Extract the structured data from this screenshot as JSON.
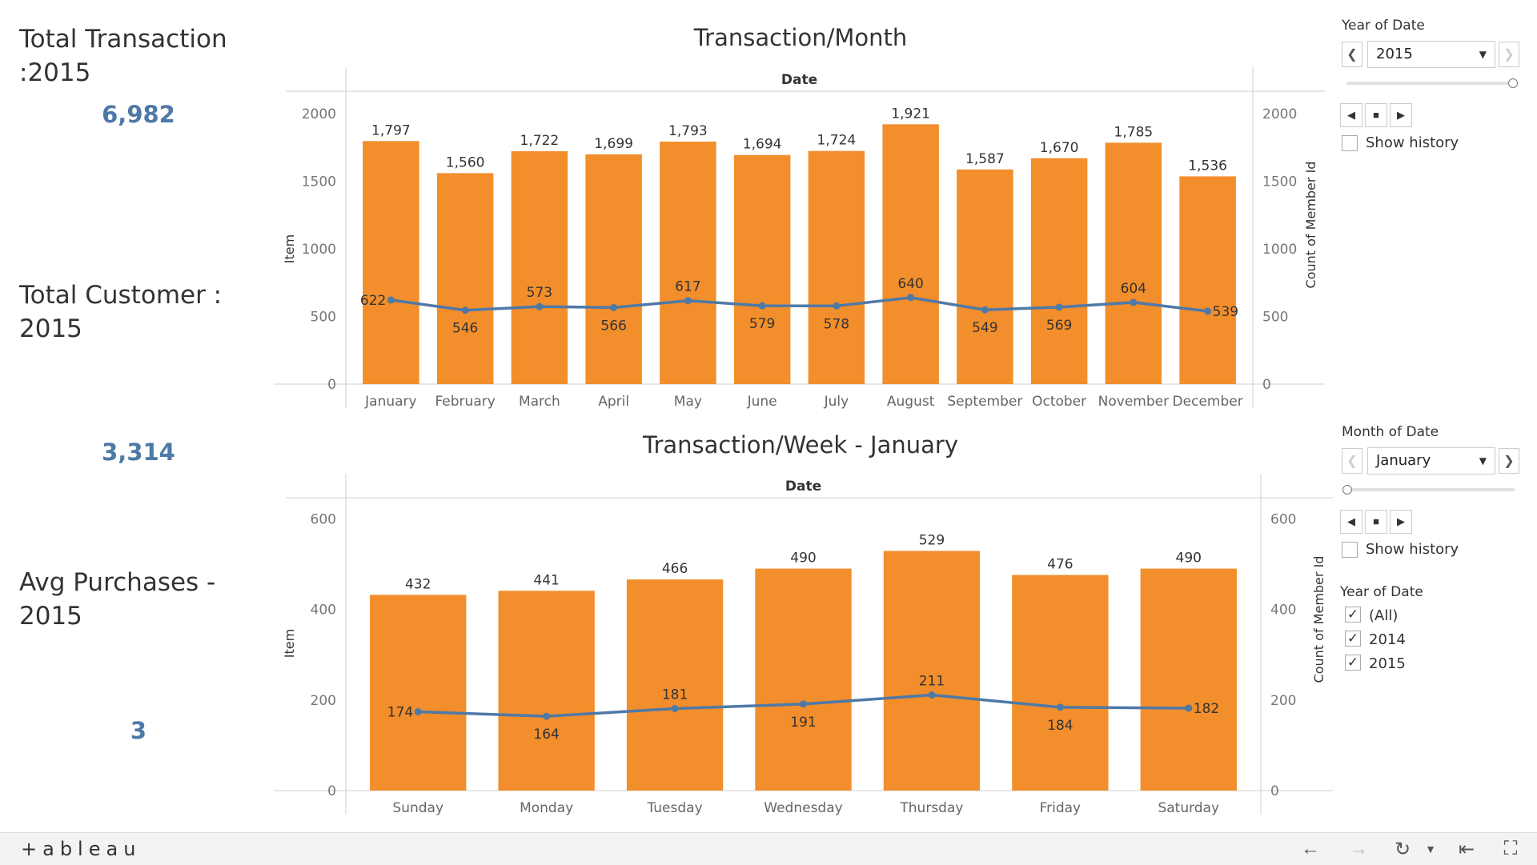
{
  "kpis": {
    "transaction_title": "Total Transaction\n:2015",
    "transaction_value": "6,982",
    "customer_title": "Total Customer :\n2015",
    "customer_value": "3,314",
    "avg_title": "Avg Purchases -\n2015",
    "avg_value": "3"
  },
  "filters": {
    "year_label": "Year of Date",
    "year_value": "2015",
    "month_label": "Month of Date",
    "month_value": "January",
    "show_history": "Show history",
    "year_list_label": "Year of Date",
    "year_options": [
      "(All)",
      "2014",
      "2015"
    ]
  },
  "colors": {
    "bar": "#f28e2b",
    "line": "#4e79a7",
    "kpi": "#4e79a7"
  },
  "footer": {
    "logo_text": "+ableau"
  },
  "chart_data": [
    {
      "type": "bar",
      "title": "Transaction/Month",
      "header": "Date",
      "ylabel": "Item",
      "y2label": "Count of Member Id",
      "ylim": [
        0,
        2000
      ],
      "yticks": [
        0,
        500,
        1000,
        1500,
        2000
      ],
      "categories": [
        "January",
        "February",
        "March",
        "April",
        "May",
        "June",
        "July",
        "August",
        "September",
        "October",
        "November",
        "December"
      ],
      "bar_values": [
        1797,
        1560,
        1722,
        1699,
        1793,
        1694,
        1724,
        1921,
        1587,
        1670,
        1785,
        1536
      ],
      "bar_labels": [
        "1,797",
        "1,560",
        "1,722",
        "1,699",
        "1,793",
        "1,694",
        "1,724",
        "1,921",
        "1,587",
        "1,670",
        "1,785",
        "1,536"
      ],
      "line_values": [
        622,
        546,
        573,
        566,
        617,
        579,
        578,
        640,
        549,
        569,
        604,
        539
      ],
      "line_labels": [
        "622",
        "546",
        "573",
        "566",
        "617",
        "579",
        "578",
        "640",
        "549",
        "569",
        "604",
        "539"
      ],
      "line_label_pos": [
        "left",
        "below",
        "above",
        "below",
        "above",
        "below",
        "below",
        "above",
        "below",
        "below",
        "above",
        "right"
      ]
    },
    {
      "type": "bar",
      "title": "Transaction/Week - January",
      "header": "Date",
      "ylabel": "Item",
      "y2label": "Count of Member Id",
      "ylim": [
        0,
        650
      ],
      "yticks": [
        0,
        200,
        400,
        600
      ],
      "categories": [
        "Sunday",
        "Monday",
        "Tuesday",
        "Wednesday",
        "Thursday",
        "Friday",
        "Saturday"
      ],
      "bar_values": [
        432,
        441,
        466,
        490,
        529,
        476,
        490
      ],
      "bar_labels": [
        "432",
        "441",
        "466",
        "490",
        "529",
        "476",
        "490"
      ],
      "line_values": [
        174,
        164,
        181,
        191,
        211,
        184,
        182
      ],
      "line_labels": [
        "174",
        "164",
        "181",
        "191",
        "211",
        "184",
        "182"
      ],
      "line_label_pos": [
        "left",
        "below",
        "above",
        "below",
        "above",
        "below",
        "right"
      ]
    }
  ]
}
